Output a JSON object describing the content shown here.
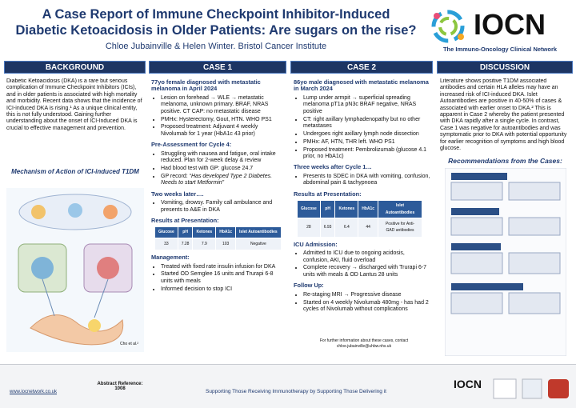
{
  "header": {
    "title_line1": "A Case Report of Immune Checkpoint Inhibitor-Induced",
    "title_line2": "Diabetic Ketoacidosis in Older Patients: Are sugars on the rise?",
    "authors": "Chloe Jubainville & Helen Winter. Bristol Cancer Institute",
    "logo": "IOCN",
    "logo_subtitle": "The Immuno-Oncology Clinical Network"
  },
  "background": {
    "heading": "BACKGROUND",
    "text": "Diabetic Ketoacidosis (DKA) is a rare but serious complication of Immune Checkpoint Inhibitors (ICIs), and in older patients is associated with high mortality and morbidity. Recent data shows that the incidence of ICI-induced DKA is rising.¹ As a unique clinical entity, this is not fully understood. Gaining further understanding about the onset of ICI-Induced DKA is crucial to effective management and prevention.",
    "figure_title": "Mechanism of Action of ICI-induced T1DM",
    "figure_credit": "Cho et al.²"
  },
  "case1": {
    "heading": "CASE 1",
    "intro": "77yo female diagnosed with metastatic melanoma in April 2024",
    "bullets1": [
      "Lesion on forehead → WLE → metastatic melanoma, unknown primary.  BRAF, NRAS positive. CT CAP: no metastatic disease",
      "PMHx: Hysterectomy, Gout, HTN. WHO PS1",
      "Proposed treatment: Adjuvant 4 weekly Nivolumab for 1 year (HbA1c 43 prior)"
    ],
    "sub1": "Pre-Assessment for Cycle 4:",
    "bullets2": [
      "Struggling with nausea and fatigue, oral intake reduced. Plan for 2-week delay & review",
      "Had blood test with GP: glucose 24.7"
    ],
    "gp_label": "GP record: ",
    "gp_quote": "“Has developed Type 2 Diabetes. Needs to start Metformin”",
    "sub2": "Two weeks later….",
    "bullets3": [
      "Vomiting, drowsy. Family call ambulance and presents to A&E in DKA"
    ],
    "sub3": "Results at Presentation:",
    "table": {
      "header": [
        "Glucose",
        "pH",
        "Ketones",
        "HbA1c",
        "Islet Autoantibodies"
      ],
      "row": [
        "33",
        "7.28",
        "7.9",
        "103",
        "Negative"
      ]
    },
    "sub4": "Management:",
    "bullets4": [
      "Treated with fixed rate insulin infusion for DKA",
      "Started OD Semglee 16 units and Trurapi 6-8 units with meals",
      "Informed decision to stop ICI"
    ]
  },
  "case2": {
    "heading": "CASE 2",
    "intro": "86yo male diagnosed with metastatic melanoma in March 2024",
    "bullets1": [
      "Lump under armpit → superficial spreading melanoma pT1a pN3c BRAF negative, NRAS positive",
      "CT: right axillary lymphadenopathy but no other metastases",
      "Undergoes right axillary lymph node dissection",
      "PMHx: AF, HTN, THR left. WHO PS1",
      "Proposed treatment: Pembrolizumab (glucose 4.1 prior, no HbA1c)"
    ],
    "sub1": "Three weeks after Cycle 1…",
    "bullets2": [
      "Presents to SDEC in DKA with vomiting, confusion, abdominal pain & tachypnoea"
    ],
    "sub2": "Results at Presentation:",
    "table": {
      "header": [
        "Glucose",
        "pH",
        "Ketones",
        "HbA1c",
        "Islet Autoantibodies"
      ],
      "row": [
        "28",
        "6.93",
        "6.4",
        "44",
        "Positive for Anti-GAD antibodies"
      ]
    },
    "sub3": "ICU Admission:",
    "bullets3": [
      "Admitted to ICU due to ongoing acidosis, confusion, AKI, fluid overload",
      "Complete recovery → discharged with Trurapi 6-7 units with meals & OD Lantus 28 units"
    ],
    "sub4": "Follow Up:",
    "bullets4": [
      "Re-staging MRI → Progressive disease",
      "Started on 4 weekly Nivolumab 480mg  - has had 2 cycles of Nivolumab without complications"
    ],
    "contact": "For further information about these cases, contact chloe.jubainville@uhbw.nhs.uk"
  },
  "discussion": {
    "heading": "DISCUSSION",
    "text": "Literature shows positive T1DM associated antibodies and certain HLA alleles may have an increased risk of ICI-induced DKA. Islet Autoantibodies are positive in 40-50% of cases & associated with earlier onset to DKA.² This is apparent in Case 2 whereby the patient presented with DKA rapidly after a single cycle. In contrast, Case 1 was negative for autoantibodies and was symptomatic prior to DKA with potential opportunity for earlier recognition of symptoms and high blood glucose.",
    "recommendations_title": "Recommendations from the Cases:"
  },
  "footer": {
    "website": "www.iocnetwork.co.uk",
    "abstract_label": "Abstract Reference:",
    "abstract_number": "1008",
    "tagline": "Supporting Those Receiving Immunotherapy by Supporting Those Delivering it",
    "logo": "IOCN"
  }
}
